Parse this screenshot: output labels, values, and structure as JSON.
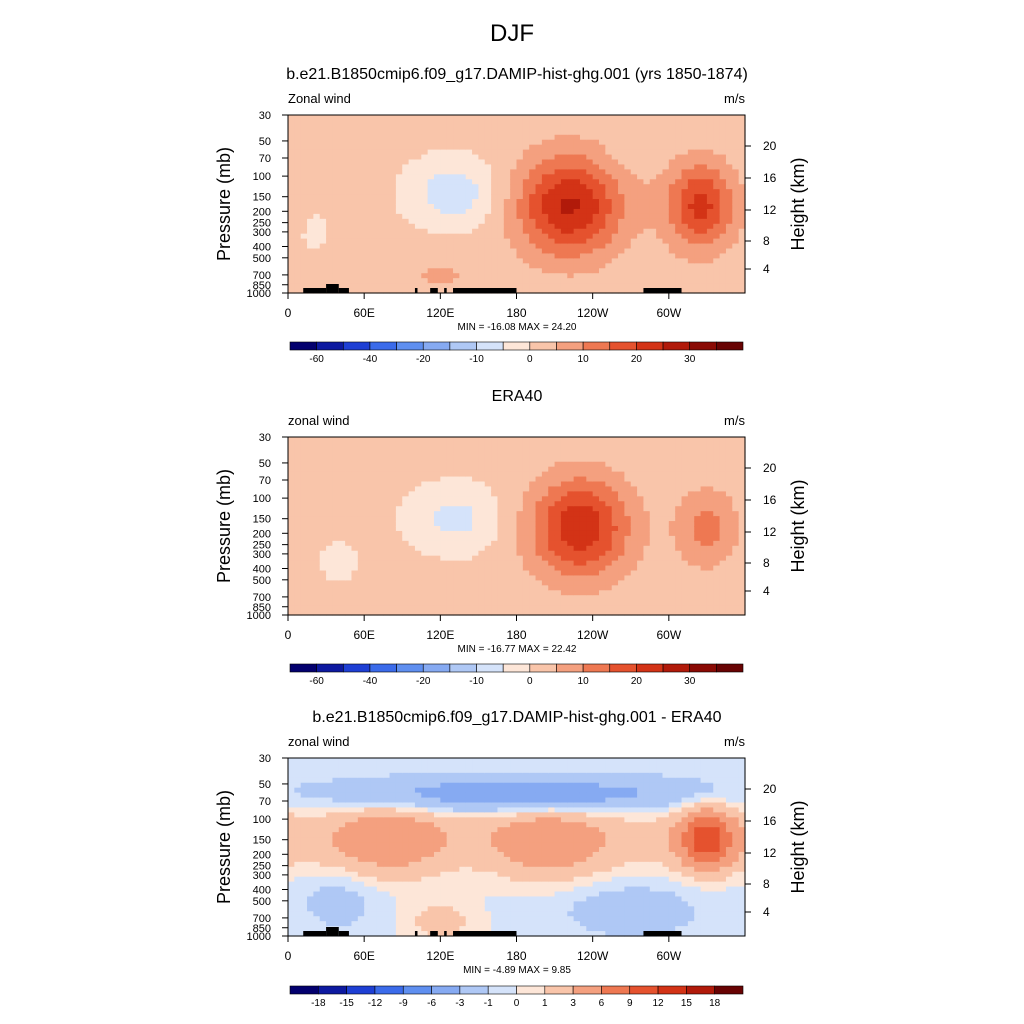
{
  "figure": {
    "title": "DJF"
  },
  "palettes": {
    "full": [
      "#03006e",
      "#0d19a0",
      "#1e3fd4",
      "#3b6bea",
      "#5f8ff0",
      "#86aaf2",
      "#afc8f5",
      "#d5e3fa",
      "#fde6d8",
      "#f9c5aa",
      "#f4a07f",
      "#ee7852",
      "#e5522e",
      "#d33316",
      "#b11a0a",
      "#8a0a04",
      "#680303"
    ],
    "diff": [
      "#03006e",
      "#0d19a0",
      "#1e3fd4",
      "#3b6bea",
      "#5f8ff0",
      "#86aaf2",
      "#afc8f5",
      "#d5e3fa",
      "#fde6d8",
      "#f9c5aa",
      "#f4a07f",
      "#ee7852",
      "#e5522e",
      "#d33316",
      "#b11a0a",
      "#680303"
    ]
  },
  "chart_data": [
    {
      "type": "heatmap",
      "title": "b.e21.B1850cmip6.f09_g17.DAMIP-hist-ghg.001 (yrs 1850-1874)",
      "left_label": "Zonal wind",
      "units": "m/s",
      "ylabel": "Pressure (mb)",
      "y2label": "Height (km)",
      "xticks": [
        "0",
        "60E",
        "120E",
        "180",
        "120W",
        "60W"
      ],
      "yticks": [
        "30",
        "50",
        "70",
        "100",
        "150",
        "200",
        "250",
        "300",
        "400",
        "500",
        "700",
        "850",
        "1000"
      ],
      "y2ticks": [
        "20",
        "16",
        "12",
        "8",
        "4"
      ],
      "stats": "MIN = -16.08  MAX =  24.20",
      "colorbar_labels": [
        "-60",
        "-40",
        "-20",
        "-10",
        "0",
        "10",
        "20",
        "30"
      ],
      "palette": "full",
      "topography": true,
      "features": [
        {
          "lon": 130,
          "p": 140,
          "val": -10,
          "width": 48,
          "depth": 0.45,
          "sign": -1
        },
        {
          "lon": 222,
          "p": 180,
          "val": 24.2,
          "width": 58,
          "depth": 0.7,
          "sign": 1
        },
        {
          "lon": 325,
          "p": 180,
          "val": 20,
          "width": 38,
          "depth": 0.6,
          "sign": 1
        },
        {
          "lon": 20,
          "p": 300,
          "val": -3,
          "width": 18,
          "depth": 0.3,
          "sign": -1
        },
        {
          "lon": 120,
          "p": 700,
          "val": 4,
          "width": 50,
          "depth": 0.35,
          "sign": 1
        },
        {
          "lon": 265,
          "p": 70,
          "val": -2,
          "width": 30,
          "depth": 0.2,
          "sign": -1
        }
      ]
    },
    {
      "type": "heatmap",
      "title": "ERA40",
      "left_label": "zonal wind",
      "units": "m/s",
      "ylabel": "Pressure (mb)",
      "y2label": "Height (km)",
      "xticks": [
        "0",
        "60E",
        "120E",
        "180",
        "120W",
        "60W"
      ],
      "yticks": [
        "30",
        "50",
        "70",
        "100",
        "150",
        "200",
        "250",
        "300",
        "400",
        "500",
        "700",
        "850",
        "1000"
      ],
      "y2ticks": [
        "20",
        "16",
        "12",
        "8",
        "4"
      ],
      "stats": "MIN = -16.77  MAX =  22.42",
      "colorbar_labels": [
        "-60",
        "-40",
        "-20",
        "-10",
        "0",
        "10",
        "20",
        "30"
      ],
      "palette": "full",
      "topography": false,
      "features": [
        {
          "lon": 132,
          "p": 150,
          "val": -8,
          "width": 50,
          "depth": 0.45,
          "sign": -1
        },
        {
          "lon": 230,
          "p": 180,
          "val": 22.42,
          "width": 55,
          "depth": 0.7,
          "sign": 1
        },
        {
          "lon": 330,
          "p": 180,
          "val": 10,
          "width": 35,
          "depth": 0.55,
          "sign": 1
        },
        {
          "lon": 40,
          "p": 350,
          "val": -2,
          "width": 40,
          "depth": 0.5,
          "sign": -1
        },
        {
          "lon": 140,
          "p": 800,
          "val": 3,
          "width": 45,
          "depth": 0.3,
          "sign": 1
        }
      ]
    },
    {
      "type": "heatmap",
      "title": "b.e21.B1850cmip6.f09_g17.DAMIP-hist-ghg.001 - ERA40",
      "left_label": "zonal wind",
      "units": "m/s",
      "ylabel": "Pressure (mb)",
      "y2label": "Height (km)",
      "xticks": [
        "0",
        "60E",
        "120E",
        "180",
        "120W",
        "60W"
      ],
      "yticks": [
        "30",
        "50",
        "70",
        "100",
        "150",
        "200",
        "250",
        "300",
        "400",
        "500",
        "700",
        "850",
        "1000"
      ],
      "y2ticks": [
        "20",
        "16",
        "12",
        "8",
        "4"
      ],
      "stats": "MIN =  -4.89  MAX =   9.85",
      "colorbar_labels": [
        "-18",
        "-15",
        "-12",
        "-9",
        "-6",
        "-3",
        "-1",
        "0",
        "1",
        "3",
        "6",
        "9",
        "12",
        "15",
        "18"
      ],
      "palette": "diff",
      "topography": true,
      "features": [
        {
          "lon": 180,
          "p": 62,
          "val": -4.89,
          "width": 200,
          "depth": 0.25,
          "sign": -1
        },
        {
          "lon": 330,
          "p": 150,
          "val": 9.85,
          "width": 30,
          "depth": 0.4,
          "sign": 1
        },
        {
          "lon": 80,
          "p": 150,
          "val": 4,
          "width": 60,
          "depth": 0.5,
          "sign": 1
        },
        {
          "lon": 205,
          "p": 160,
          "val": 4,
          "width": 60,
          "depth": 0.5,
          "sign": 1
        },
        {
          "lon": 40,
          "p": 500,
          "val": -1.5,
          "width": 40,
          "depth": 0.4,
          "sign": -1
        },
        {
          "lon": 270,
          "p": 600,
          "val": -2,
          "width": 70,
          "depth": 0.35,
          "sign": -1
        },
        {
          "lon": 120,
          "p": 750,
          "val": 2,
          "width": 40,
          "depth": 0.3,
          "sign": 1
        }
      ]
    }
  ]
}
